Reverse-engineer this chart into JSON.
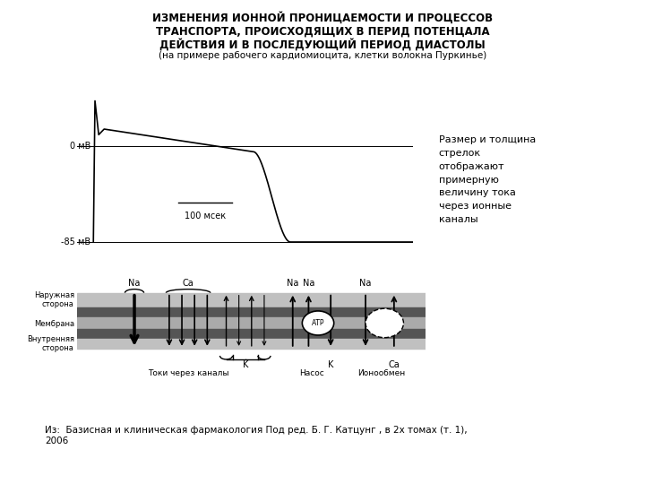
{
  "title_line1": "ИЗМЕНЕНИЯ ИОННОЙ ПРОНИЦАЕМОСТИ И ПРОЦЕССОВ",
  "title_line2": "ТРАНСПОРТА, ПРОИСХОДЯЩИХ В ПЕРИД ПОТЕНЦАЛА",
  "title_line3": "ДЕЙСТВИЯ И В ПОСЛЕДУЮЩИЙ ПЕРИОД ДИАСТОЛЫ",
  "title_line4": "(на примере рабочего кардиомиоцита, клетки волокна Пуркинье)",
  "label_0mv": "0 мВ",
  "label_85mv": "-85 мВ",
  "label_100msec": "100 мсек",
  "label_outer": "Наружная\nсторона",
  "label_membrane": "Мембрана",
  "label_inner": "Внутренняя\nсторона",
  "label_currents": "Токи через каналы",
  "label_K_channel": "K",
  "label_Na1": "Na",
  "label_Ca": "Ca",
  "label_Na2": "Na",
  "label_Na3": "Na",
  "label_K_pump": "K",
  "label_Ca2": "Ca",
  "label_pump": "Насос",
  "label_exchanger": "Ионообмен",
  "label_ATP": "АТР",
  "annotation": "Размер и толщина\nстрелок\nотображают\nпримерную\nвеличину тока\nчерез ионные\nканалы",
  "reference": "Из:  Базисная и клиническая фармакология Под ред. Б. Г. Катцунг , в 2х томах (т. 1),\n2006",
  "membrane_light": "#b0b0b0",
  "membrane_mid": "#888888",
  "membrane_dark": "#444444"
}
